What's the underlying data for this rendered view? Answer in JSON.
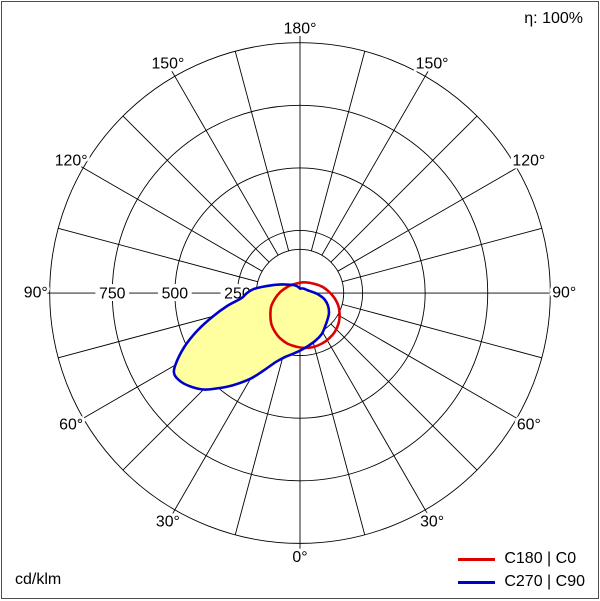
{
  "frame": {
    "eta_label": "η: 100%",
    "units_label": "cd/klm"
  },
  "chart_data": {
    "type": "line",
    "projection": "polar photometric luminous intensity distribution (C-plane polar diagram)",
    "title": "",
    "radial_unit": "cd/klm",
    "radial_ticks": [
      250,
      500,
      750
    ],
    "radial_max": 1000,
    "angle_unit": "degrees",
    "angle_convention": "0° = nadir (bottom of diagram); angle increases toward both sides up to 180° at top; negative angle = left half (C180 / C270 side), positive = right half (C0 / C90 side)",
    "angle_grid_step": 15,
    "angle_label_step": 30,
    "angle_labels": [
      "0°",
      "30°",
      "60°",
      "90°",
      "120°",
      "150°",
      "180°"
    ],
    "grid_color": "#000000",
    "background_color": "#ffffff",
    "efficiency": "η: 100%",
    "legend_position": "bottom-right",
    "series": [
      {
        "name": "C180 | C0",
        "color": "#dd0000",
        "fill": null,
        "points": [
          [
            -180,
            41
          ],
          [
            -156,
            41
          ],
          [
            -134,
            47
          ],
          [
            -116,
            56
          ],
          [
            -93,
            79
          ],
          [
            -77,
            103
          ],
          [
            -65,
            127
          ],
          [
            -53,
            148
          ],
          [
            -43,
            168
          ],
          [
            -33,
            184
          ],
          [
            -24,
            197
          ],
          [
            -14,
            208
          ],
          [
            -4,
            215
          ],
          [
            5,
            220
          ],
          [
            14,
            222
          ],
          [
            24,
            220
          ],
          [
            33,
            215
          ],
          [
            42,
            208
          ],
          [
            52,
            196
          ],
          [
            61,
            181
          ],
          [
            71,
            163
          ],
          [
            81,
            141
          ],
          [
            92,
            117
          ],
          [
            106,
            92
          ],
          [
            124,
            67
          ],
          [
            156,
            47
          ]
        ]
      },
      {
        "name": "C270 | C90",
        "color": "#0000cc",
        "fill": "#ffffa0",
        "points": [
          [
            -180,
            18
          ],
          [
            -160,
            28
          ],
          [
            -140,
            42
          ],
          [
            -120,
            68
          ],
          [
            -110,
            98
          ],
          [
            -100,
            148
          ],
          [
            -95,
            185
          ],
          [
            -90,
            212
          ],
          [
            -85,
            235
          ],
          [
            -80,
            295
          ],
          [
            -75,
            360
          ],
          [
            -70,
            435
          ],
          [
            -65,
            510
          ],
          [
            -60,
            575
          ],
          [
            -57,
            598
          ],
          [
            -53,
            592
          ],
          [
            -49,
            572
          ],
          [
            -45,
            545
          ],
          [
            -41,
            505
          ],
          [
            -36,
            455
          ],
          [
            -30,
            395
          ],
          [
            -25,
            340
          ],
          [
            -19,
            290
          ],
          [
            -13,
            262
          ],
          [
            -6,
            243
          ],
          [
            0,
            230
          ],
          [
            8,
            215
          ],
          [
            18,
            200
          ],
          [
            28,
            185
          ],
          [
            38,
            165
          ],
          [
            48,
            150
          ],
          [
            56,
            140
          ],
          [
            66,
            122
          ],
          [
            76,
            100
          ],
          [
            86,
            72
          ],
          [
            96,
            48
          ],
          [
            110,
            32
          ],
          [
            135,
            24
          ],
          [
            160,
            20
          ]
        ]
      }
    ]
  }
}
